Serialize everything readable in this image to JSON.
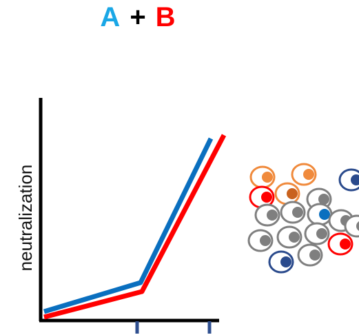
{
  "title": {
    "a": "A",
    "plus": "+",
    "b": "B"
  },
  "chart": {
    "ylabel": "neutralization",
    "series": [
      {
        "key": "A",
        "color": "#0a6fbf",
        "values": [
          0.02,
          0.17,
          0.88
        ]
      },
      {
        "key": "B",
        "color": "#ff0000",
        "values": [
          0.0,
          0.14,
          0.86
        ]
      }
    ]
  },
  "colors": {
    "a_text": "#1aa7e6",
    "b_text": "#ff0000",
    "axis": "#000000",
    "tick": "#2f4f8f",
    "orange": "#f08a3c",
    "orange_dark": "#c9621e",
    "red": "#ff0000",
    "grey": "#7f7f7f",
    "blue": "#0a6fbf",
    "navy": "#2a4a8c"
  },
  "cells": [
    {
      "type": "orange"
    },
    {
      "type": "orange"
    },
    {
      "type": "navy"
    },
    {
      "type": "red"
    },
    {
      "type": "orange-dark"
    },
    {
      "type": "grey"
    },
    {
      "type": "grey"
    },
    {
      "type": "grey"
    },
    {
      "type": "blue"
    },
    {
      "type": "grey"
    },
    {
      "type": "grey"
    },
    {
      "type": "grey"
    },
    {
      "type": "grey"
    },
    {
      "type": "grey"
    },
    {
      "type": "red"
    },
    {
      "type": "navy"
    },
    {
      "type": "grey"
    }
  ]
}
